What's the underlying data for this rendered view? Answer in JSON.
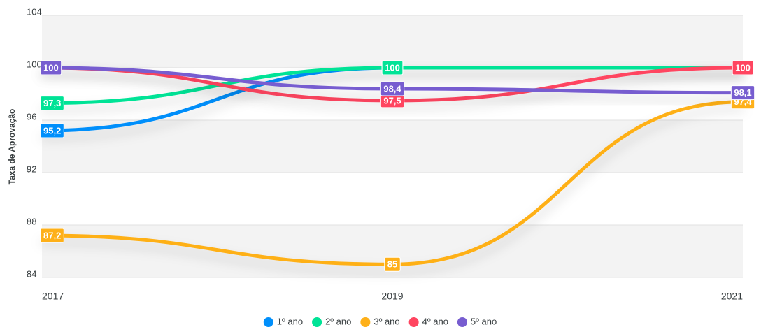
{
  "chart_data": {
    "type": "line",
    "y_label": "Taxa de Aprovação",
    "categories": [
      "2017",
      "2019",
      "2021"
    ],
    "series": [
      {
        "name": "1º ano",
        "color": "#008FFB",
        "values": [
          95.2,
          100,
          100
        ],
        "value_labels": [
          "95,2",
          "100",
          "100"
        ]
      },
      {
        "name": "2º ano",
        "color": "#00E396",
        "values": [
          97.3,
          100,
          100
        ],
        "value_labels": [
          "97,3",
          "100",
          "100"
        ]
      },
      {
        "name": "3º ano",
        "color": "#FEB019",
        "values": [
          87.2,
          85,
          97.4
        ],
        "value_labels": [
          "87,2",
          "85",
          "97,4"
        ]
      },
      {
        "name": "4º ano",
        "color": "#FF4560",
        "values": [
          100,
          97.5,
          100
        ],
        "value_labels": [
          "100",
          "97,5",
          "100"
        ]
      },
      {
        "name": "5º ano",
        "color": "#775DD0",
        "values": [
          100,
          98.4,
          98.1
        ],
        "value_labels": [
          "100",
          "98,4",
          "98,1"
        ]
      }
    ],
    "ylim": [
      84,
      104
    ],
    "yticks": [
      84,
      88,
      92,
      96,
      100,
      104
    ],
    "grid": true,
    "legend": "bottom"
  }
}
